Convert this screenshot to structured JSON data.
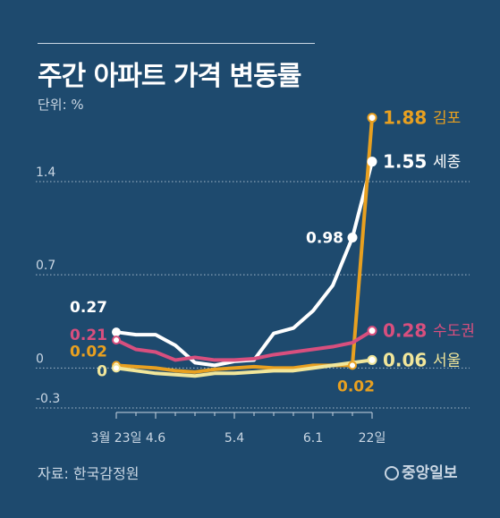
{
  "header": {
    "title": "주간 아파트 가격 변동률",
    "unit": "단위: %"
  },
  "footer": {
    "source": "자료: 한국감정원",
    "brand": "중앙일보"
  },
  "chart_data": {
    "type": "line",
    "title": "주간 아파트 가격 변동률",
    "ylabel": "단위: %",
    "ylim": [
      -0.3,
      1.4
    ],
    "yticks": [
      "1.4",
      "0.7",
      "0",
      "-0.3"
    ],
    "yticks_values": [
      1.4,
      0.7,
      0,
      -0.3
    ],
    "grid": true,
    "x_labels": [
      "3월 23일",
      "4.6",
      "5.4",
      "6.1",
      "22일"
    ],
    "x_label_positions": [
      0,
      2,
      6,
      10,
      13
    ],
    "x_count": 14,
    "series": [
      {
        "name": "세종",
        "color": "#ffffff",
        "values": [
          0.27,
          0.25,
          0.25,
          0.17,
          0.04,
          0.02,
          0.05,
          0.06,
          0.26,
          0.3,
          0.43,
          0.62,
          0.98,
          1.55
        ],
        "end_label_value": "1.55",
        "end_label_name": "세종"
      },
      {
        "name": "김포",
        "color": "#e8a020",
        "values": [
          0.02,
          0.01,
          0.0,
          -0.02,
          -0.03,
          -0.01,
          0.0,
          0.01,
          0.0,
          0.0,
          0.02,
          0.02,
          0.02,
          1.88
        ],
        "end_label_value": "1.88",
        "end_label_name": "김포"
      },
      {
        "name": "수도권",
        "color": "#d84f7e",
        "values": [
          0.21,
          0.14,
          0.12,
          0.06,
          0.08,
          0.06,
          0.06,
          0.07,
          0.1,
          0.12,
          0.14,
          0.16,
          0.19,
          0.28
        ],
        "end_label_value": "0.28",
        "end_label_name": "수도권"
      },
      {
        "name": "서울",
        "color": "#f1e69a",
        "values": [
          0.0,
          -0.02,
          -0.04,
          -0.05,
          -0.06,
          -0.04,
          -0.04,
          -0.03,
          -0.02,
          -0.02,
          0.0,
          0.02,
          0.04,
          0.06
        ],
        "end_label_value": "0.06",
        "end_label_name": "서울"
      }
    ],
    "annotations": [
      {
        "text": "0.27",
        "series": "세종",
        "index": 0,
        "color": "#ffffff"
      },
      {
        "text": "0.21",
        "series": "수도권",
        "index": 0,
        "color": "#d84f7e"
      },
      {
        "text": "0.02",
        "series": "김포",
        "index": 0,
        "color": "#e8a020"
      },
      {
        "text": "0",
        "series": "서울",
        "index": 0,
        "color": "#f1e69a"
      },
      {
        "text": "0.98",
        "series": "세종",
        "index": 12,
        "color": "#ffffff"
      },
      {
        "text": "0.02",
        "series": "김포",
        "index": 12,
        "color": "#e8a020"
      }
    ],
    "colors": {
      "background": "#1e4a6e",
      "grid": "#c9d6e3",
      "axis_text": "#c9d6e3"
    }
  }
}
